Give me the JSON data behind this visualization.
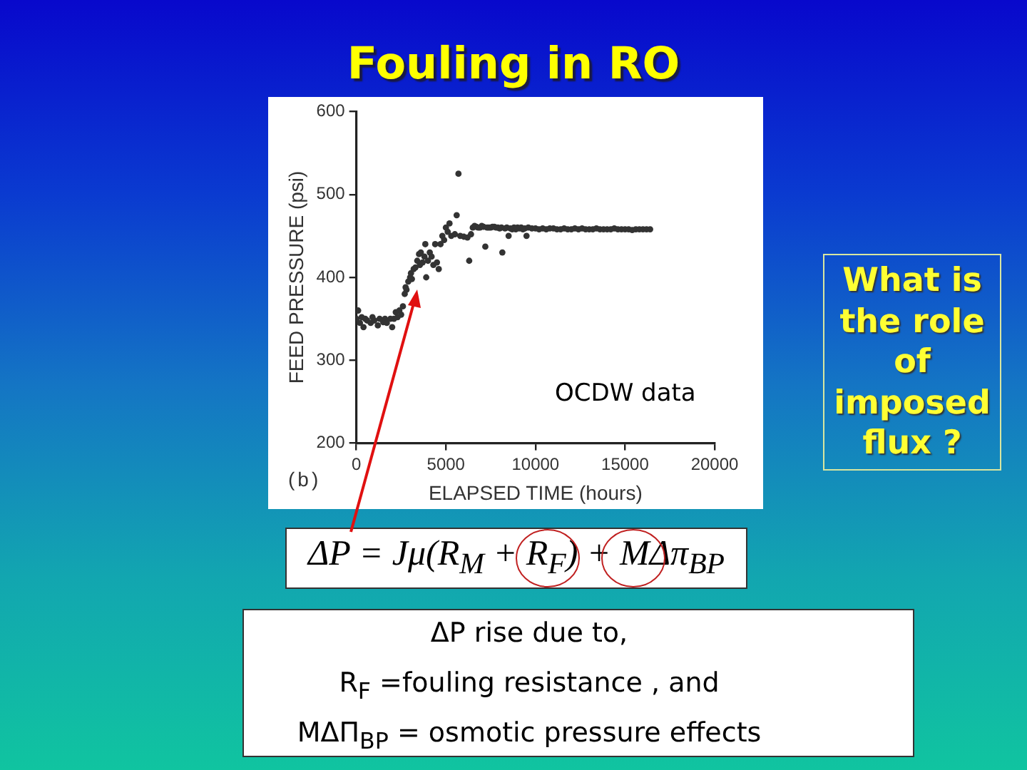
{
  "chart_data": {
    "type": "scatter",
    "title": "Fouling in RO",
    "xlabel": "ELAPSED TIME (hours)",
    "ylabel": "FEED PRESSURE (psi)",
    "x": [
      0,
      100,
      200,
      300,
      400,
      500,
      600,
      800,
      900,
      1000,
      1200,
      1300,
      1500,
      1600,
      1700,
      1900,
      2000,
      2100,
      2200,
      2300,
      2400,
      2500,
      2600,
      2700,
      2750,
      2800,
      2900,
      3000,
      3050,
      3100,
      3200,
      3300,
      3400,
      3500,
      3550,
      3600,
      3700,
      3800,
      3850,
      3900,
      4000,
      4100,
      4200,
      4300,
      4400,
      4500,
      4600,
      4700,
      4800,
      4900,
      5000,
      5100,
      5200,
      5300,
      5500,
      5600,
      5700,
      5800,
      6000,
      6200,
      6300,
      6400,
      6500,
      6600,
      6700,
      6800,
      6900,
      7000,
      7100,
      7200,
      7300,
      7400,
      7500,
      7600,
      7700,
      7800,
      7900,
      8000,
      8100,
      8150,
      8300,
      8400,
      8500,
      8600,
      8700,
      8800,
      8900,
      9000,
      9100,
      9200,
      9300,
      9400,
      9500,
      9600,
      9800,
      10000,
      10200,
      10400,
      10600,
      10800,
      11000,
      11200,
      11400,
      11600,
      11800,
      12000,
      12200,
      12400,
      12600,
      12800,
      13000,
      13200,
      13400,
      13600,
      13800,
      14000,
      14200,
      14400,
      14600,
      14800,
      15000,
      15200,
      15400,
      15600,
      15800,
      16000,
      16200,
      16400
    ],
    "values": [
      350,
      360,
      345,
      352,
      340,
      350,
      348,
      345,
      352,
      348,
      342,
      350,
      346,
      350,
      345,
      350,
      340,
      350,
      358,
      352,
      360,
      355,
      365,
      380,
      388,
      385,
      395,
      400,
      405,
      398,
      410,
      412,
      420,
      428,
      415,
      430,
      418,
      425,
      440,
      400,
      420,
      430,
      425,
      415,
      440,
      418,
      410,
      440,
      450,
      445,
      460,
      455,
      465,
      450,
      452,
      475,
      525,
      450,
      449,
      448,
      420,
      452,
      460,
      462,
      461,
      460,
      460,
      462,
      461,
      437,
      460,
      460,
      460,
      461,
      461,
      460,
      460,
      459,
      460,
      430,
      459,
      460,
      450,
      459,
      458,
      460,
      458,
      460,
      459,
      460,
      458,
      459,
      450,
      460,
      459,
      459,
      458,
      459,
      458,
      459,
      459,
      458,
      458,
      459,
      458,
      458,
      459,
      458,
      459,
      458,
      458,
      458,
      459,
      458,
      458,
      458,
      458,
      459,
      458,
      458,
      458,
      458,
      457,
      458,
      458,
      458,
      458,
      458
    ],
    "color": "#333333",
    "marker": "circle",
    "xlim": [
      0,
      20000
    ],
    "ylim": [
      200,
      600
    ],
    "xticks": [
      0,
      5000,
      10000,
      15000,
      20000
    ],
    "yticks": [
      200,
      300,
      400,
      500,
      600
    ],
    "grid": false,
    "annotations": [
      "OCDW data",
      "(b)",
      "ΔP = Jμ(R$_{M}$ + R$_{F}$) + MΔπ$_{BP}$",
      "ΔP rise due to,",
      "R$_{F}$ =fouling resistance , and",
      "MΔΠ$_{BP}$ = osmotic pressure effects",
      "What is the role of imposed flux ?"
    ]
  }
}
